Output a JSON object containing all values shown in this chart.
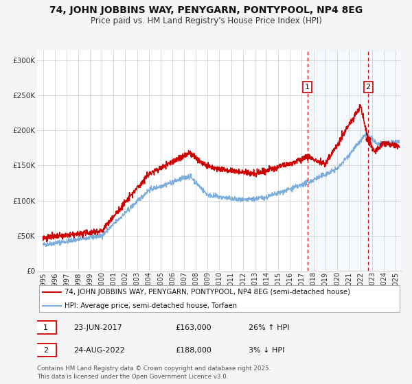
{
  "title": "74, JOHN JOBBINS WAY, PENYGARN, PONTYPOOL, NP4 8EG",
  "subtitle": "Price paid vs. HM Land Registry's House Price Index (HPI)",
  "ylabel_ticks": [
    "£0",
    "£50K",
    "£100K",
    "£150K",
    "£200K",
    "£250K",
    "£300K"
  ],
  "ytick_vals": [
    0,
    50000,
    100000,
    150000,
    200000,
    250000,
    300000
  ],
  "ylim": [
    0,
    315000
  ],
  "xlim_start": 1994.5,
  "xlim_end": 2025.5,
  "marker1_x": 2017.48,
  "marker1_y": 163000,
  "marker2_x": 2022.65,
  "marker2_y": 188000,
  "vline1_x": 2017.48,
  "vline2_x": 2022.65,
  "red_color": "#cc0000",
  "blue_color": "#7aacdc",
  "bg_shade_color": "#ddeeff",
  "legend_label_red": "74, JOHN JOBBINS WAY, PENYGARN, PONTYPOOL, NP4 8EG (semi-detached house)",
  "legend_label_blue": "HPI: Average price, semi-detached house, Torfaen",
  "table_row1": [
    "1",
    "23-JUN-2017",
    "£163,000",
    "26% ↑ HPI"
  ],
  "table_row2": [
    "2",
    "24-AUG-2022",
    "£188,000",
    "3% ↓ HPI"
  ],
  "footnote": "Contains HM Land Registry data © Crown copyright and database right 2025.\nThis data is licensed under the Open Government Licence v3.0.",
  "bg_color": "#f5f5f5",
  "plot_bg": "#ffffff"
}
